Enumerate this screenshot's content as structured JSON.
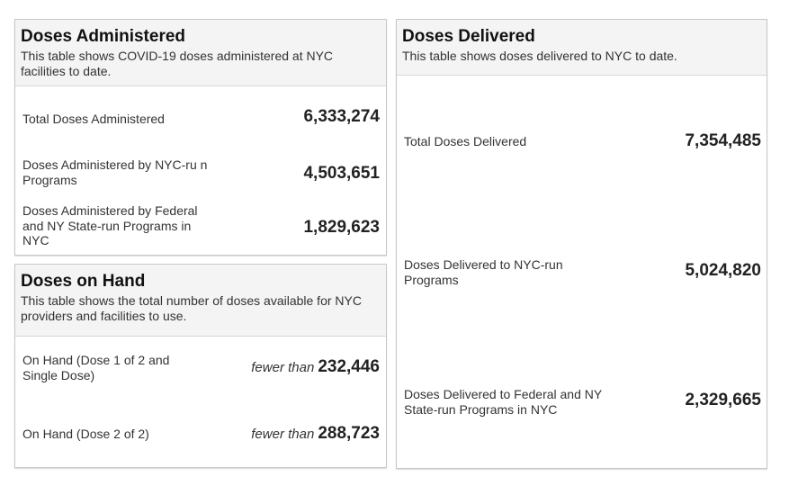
{
  "administered": {
    "title": "Doses Administered",
    "subtitle": "This table shows COVID-19 doses administered at NYC facilities to date.",
    "rows": [
      {
        "label": "Total Doses Administered",
        "value": "6,333,274"
      },
      {
        "label": "Doses Administered by NYC-ru n Programs",
        "value": "4,503,651"
      },
      {
        "label": "Doses Administered by Federal and NY State-run Programs in NYC",
        "value": "1,829,623"
      }
    ]
  },
  "on_hand": {
    "title": "Doses on Hand",
    "subtitle": "This table shows the total number of doses available for NYC providers and facilities to use.",
    "rows": [
      {
        "label": "On Hand (Dose 1 of 2 and Single Dose)",
        "qualifier": "fewer than",
        "value": "232,446"
      },
      {
        "label": "On Hand (Dose 2 of 2)",
        "qualifier": "fewer than",
        "value": "288,723"
      }
    ]
  },
  "delivered": {
    "title": "Doses Delivered",
    "subtitle": "This table shows doses delivered to NYC to date.",
    "rows": [
      {
        "label": "Total Doses Delivered",
        "value": "7,354,485"
      },
      {
        "label": "Doses Delivered to NYC-run Programs",
        "value": "5,024,820"
      },
      {
        "label": "Doses Delivered to Federal and NY State-run Programs in NYC",
        "value": "2,329,665"
      }
    ]
  }
}
